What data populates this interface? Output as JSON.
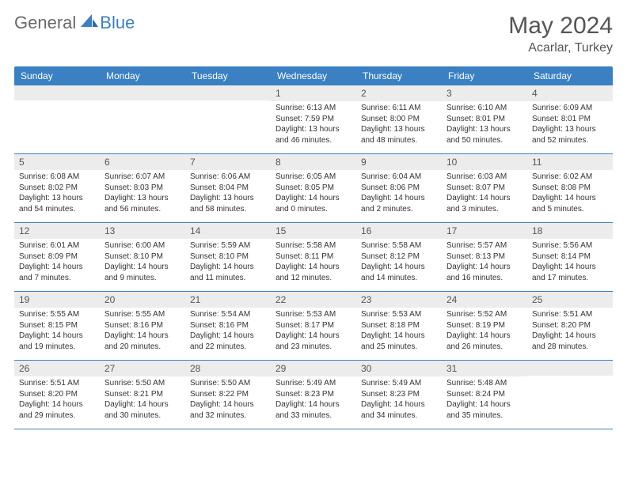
{
  "brand": {
    "general": "General",
    "blue": "Blue"
  },
  "title": "May 2024",
  "location": "Acarlar, Turkey",
  "colors": {
    "accent": "#3a80c3",
    "header_bg": "#3a80c3",
    "daynum_bg": "#ececec",
    "text": "#333333"
  },
  "day_headers": [
    "Sunday",
    "Monday",
    "Tuesday",
    "Wednesday",
    "Thursday",
    "Friday",
    "Saturday"
  ],
  "weeks": [
    [
      null,
      null,
      null,
      {
        "n": "1",
        "sr": "Sunrise: 6:13 AM",
        "ss": "Sunset: 7:59 PM",
        "d1": "Daylight: 13 hours",
        "d2": "and 46 minutes."
      },
      {
        "n": "2",
        "sr": "Sunrise: 6:11 AM",
        "ss": "Sunset: 8:00 PM",
        "d1": "Daylight: 13 hours",
        "d2": "and 48 minutes."
      },
      {
        "n": "3",
        "sr": "Sunrise: 6:10 AM",
        "ss": "Sunset: 8:01 PM",
        "d1": "Daylight: 13 hours",
        "d2": "and 50 minutes."
      },
      {
        "n": "4",
        "sr": "Sunrise: 6:09 AM",
        "ss": "Sunset: 8:01 PM",
        "d1": "Daylight: 13 hours",
        "d2": "and 52 minutes."
      }
    ],
    [
      {
        "n": "5",
        "sr": "Sunrise: 6:08 AM",
        "ss": "Sunset: 8:02 PM",
        "d1": "Daylight: 13 hours",
        "d2": "and 54 minutes."
      },
      {
        "n": "6",
        "sr": "Sunrise: 6:07 AM",
        "ss": "Sunset: 8:03 PM",
        "d1": "Daylight: 13 hours",
        "d2": "and 56 minutes."
      },
      {
        "n": "7",
        "sr": "Sunrise: 6:06 AM",
        "ss": "Sunset: 8:04 PM",
        "d1": "Daylight: 13 hours",
        "d2": "and 58 minutes."
      },
      {
        "n": "8",
        "sr": "Sunrise: 6:05 AM",
        "ss": "Sunset: 8:05 PM",
        "d1": "Daylight: 14 hours",
        "d2": "and 0 minutes."
      },
      {
        "n": "9",
        "sr": "Sunrise: 6:04 AM",
        "ss": "Sunset: 8:06 PM",
        "d1": "Daylight: 14 hours",
        "d2": "and 2 minutes."
      },
      {
        "n": "10",
        "sr": "Sunrise: 6:03 AM",
        "ss": "Sunset: 8:07 PM",
        "d1": "Daylight: 14 hours",
        "d2": "and 3 minutes."
      },
      {
        "n": "11",
        "sr": "Sunrise: 6:02 AM",
        "ss": "Sunset: 8:08 PM",
        "d1": "Daylight: 14 hours",
        "d2": "and 5 minutes."
      }
    ],
    [
      {
        "n": "12",
        "sr": "Sunrise: 6:01 AM",
        "ss": "Sunset: 8:09 PM",
        "d1": "Daylight: 14 hours",
        "d2": "and 7 minutes."
      },
      {
        "n": "13",
        "sr": "Sunrise: 6:00 AM",
        "ss": "Sunset: 8:10 PM",
        "d1": "Daylight: 14 hours",
        "d2": "and 9 minutes."
      },
      {
        "n": "14",
        "sr": "Sunrise: 5:59 AM",
        "ss": "Sunset: 8:10 PM",
        "d1": "Daylight: 14 hours",
        "d2": "and 11 minutes."
      },
      {
        "n": "15",
        "sr": "Sunrise: 5:58 AM",
        "ss": "Sunset: 8:11 PM",
        "d1": "Daylight: 14 hours",
        "d2": "and 12 minutes."
      },
      {
        "n": "16",
        "sr": "Sunrise: 5:58 AM",
        "ss": "Sunset: 8:12 PM",
        "d1": "Daylight: 14 hours",
        "d2": "and 14 minutes."
      },
      {
        "n": "17",
        "sr": "Sunrise: 5:57 AM",
        "ss": "Sunset: 8:13 PM",
        "d1": "Daylight: 14 hours",
        "d2": "and 16 minutes."
      },
      {
        "n": "18",
        "sr": "Sunrise: 5:56 AM",
        "ss": "Sunset: 8:14 PM",
        "d1": "Daylight: 14 hours",
        "d2": "and 17 minutes."
      }
    ],
    [
      {
        "n": "19",
        "sr": "Sunrise: 5:55 AM",
        "ss": "Sunset: 8:15 PM",
        "d1": "Daylight: 14 hours",
        "d2": "and 19 minutes."
      },
      {
        "n": "20",
        "sr": "Sunrise: 5:55 AM",
        "ss": "Sunset: 8:16 PM",
        "d1": "Daylight: 14 hours",
        "d2": "and 20 minutes."
      },
      {
        "n": "21",
        "sr": "Sunrise: 5:54 AM",
        "ss": "Sunset: 8:16 PM",
        "d1": "Daylight: 14 hours",
        "d2": "and 22 minutes."
      },
      {
        "n": "22",
        "sr": "Sunrise: 5:53 AM",
        "ss": "Sunset: 8:17 PM",
        "d1": "Daylight: 14 hours",
        "d2": "and 23 minutes."
      },
      {
        "n": "23",
        "sr": "Sunrise: 5:53 AM",
        "ss": "Sunset: 8:18 PM",
        "d1": "Daylight: 14 hours",
        "d2": "and 25 minutes."
      },
      {
        "n": "24",
        "sr": "Sunrise: 5:52 AM",
        "ss": "Sunset: 8:19 PM",
        "d1": "Daylight: 14 hours",
        "d2": "and 26 minutes."
      },
      {
        "n": "25",
        "sr": "Sunrise: 5:51 AM",
        "ss": "Sunset: 8:20 PM",
        "d1": "Daylight: 14 hours",
        "d2": "and 28 minutes."
      }
    ],
    [
      {
        "n": "26",
        "sr": "Sunrise: 5:51 AM",
        "ss": "Sunset: 8:20 PM",
        "d1": "Daylight: 14 hours",
        "d2": "and 29 minutes."
      },
      {
        "n": "27",
        "sr": "Sunrise: 5:50 AM",
        "ss": "Sunset: 8:21 PM",
        "d1": "Daylight: 14 hours",
        "d2": "and 30 minutes."
      },
      {
        "n": "28",
        "sr": "Sunrise: 5:50 AM",
        "ss": "Sunset: 8:22 PM",
        "d1": "Daylight: 14 hours",
        "d2": "and 32 minutes."
      },
      {
        "n": "29",
        "sr": "Sunrise: 5:49 AM",
        "ss": "Sunset: 8:23 PM",
        "d1": "Daylight: 14 hours",
        "d2": "and 33 minutes."
      },
      {
        "n": "30",
        "sr": "Sunrise: 5:49 AM",
        "ss": "Sunset: 8:23 PM",
        "d1": "Daylight: 14 hours",
        "d2": "and 34 minutes."
      },
      {
        "n": "31",
        "sr": "Sunrise: 5:48 AM",
        "ss": "Sunset: 8:24 PM",
        "d1": "Daylight: 14 hours",
        "d2": "and 35 minutes."
      },
      null
    ]
  ]
}
